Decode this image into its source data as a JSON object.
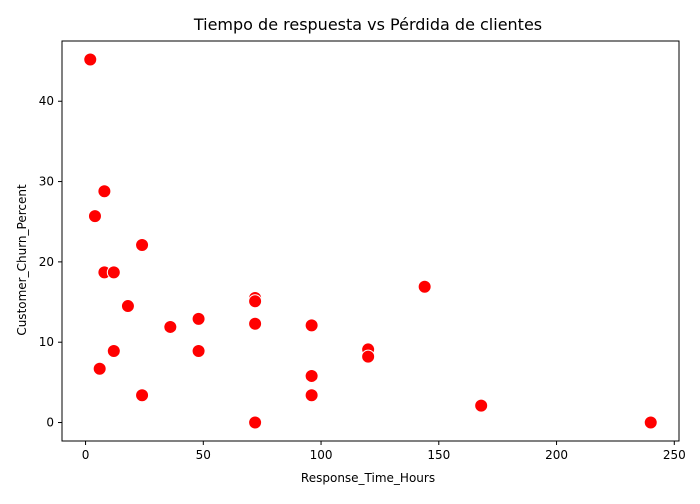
{
  "chart_data": {
    "type": "scatter",
    "title": "Tiempo de respuesta vs Pérdida de clientes",
    "xlabel": "Response_Time_Hours",
    "ylabel": "Customer_Churn_Percent",
    "xlim": [
      -10,
      252
    ],
    "ylim": [
      -2.3,
      47.5
    ],
    "x_ticks": [
      0,
      50,
      100,
      150,
      200,
      250
    ],
    "y_ticks": [
      0,
      10,
      20,
      30,
      40
    ],
    "x_tick_labels": [
      "0",
      "50",
      "100",
      "150",
      "200",
      "250"
    ],
    "y_tick_labels": [
      "0",
      "10",
      "20",
      "30",
      "40"
    ],
    "grid": false,
    "legend": "none",
    "marker_color": "#ff0000",
    "marker_edge_color": "#ffffff",
    "points": [
      {
        "x": 2,
        "y": 45.2
      },
      {
        "x": 4,
        "y": 25.7
      },
      {
        "x": 6,
        "y": 6.7
      },
      {
        "x": 8,
        "y": 28.8
      },
      {
        "x": 8,
        "y": 18.7
      },
      {
        "x": 12,
        "y": 18.7
      },
      {
        "x": 12,
        "y": 8.9
      },
      {
        "x": 18,
        "y": 14.5
      },
      {
        "x": 24,
        "y": 22.1
      },
      {
        "x": 24,
        "y": 3.4
      },
      {
        "x": 36,
        "y": 11.9
      },
      {
        "x": 48,
        "y": 12.9
      },
      {
        "x": 48,
        "y": 8.9
      },
      {
        "x": 72,
        "y": 15.5
      },
      {
        "x": 72,
        "y": 15.1
      },
      {
        "x": 72,
        "y": 12.3
      },
      {
        "x": 72,
        "y": 0.0
      },
      {
        "x": 96,
        "y": 12.1
      },
      {
        "x": 96,
        "y": 5.8
      },
      {
        "x": 96,
        "y": 3.4
      },
      {
        "x": 120,
        "y": 9.1
      },
      {
        "x": 120,
        "y": 8.2
      },
      {
        "x": 144,
        "y": 16.9
      },
      {
        "x": 168,
        "y": 2.1
      },
      {
        "x": 240,
        "y": 0.0
      }
    ]
  }
}
